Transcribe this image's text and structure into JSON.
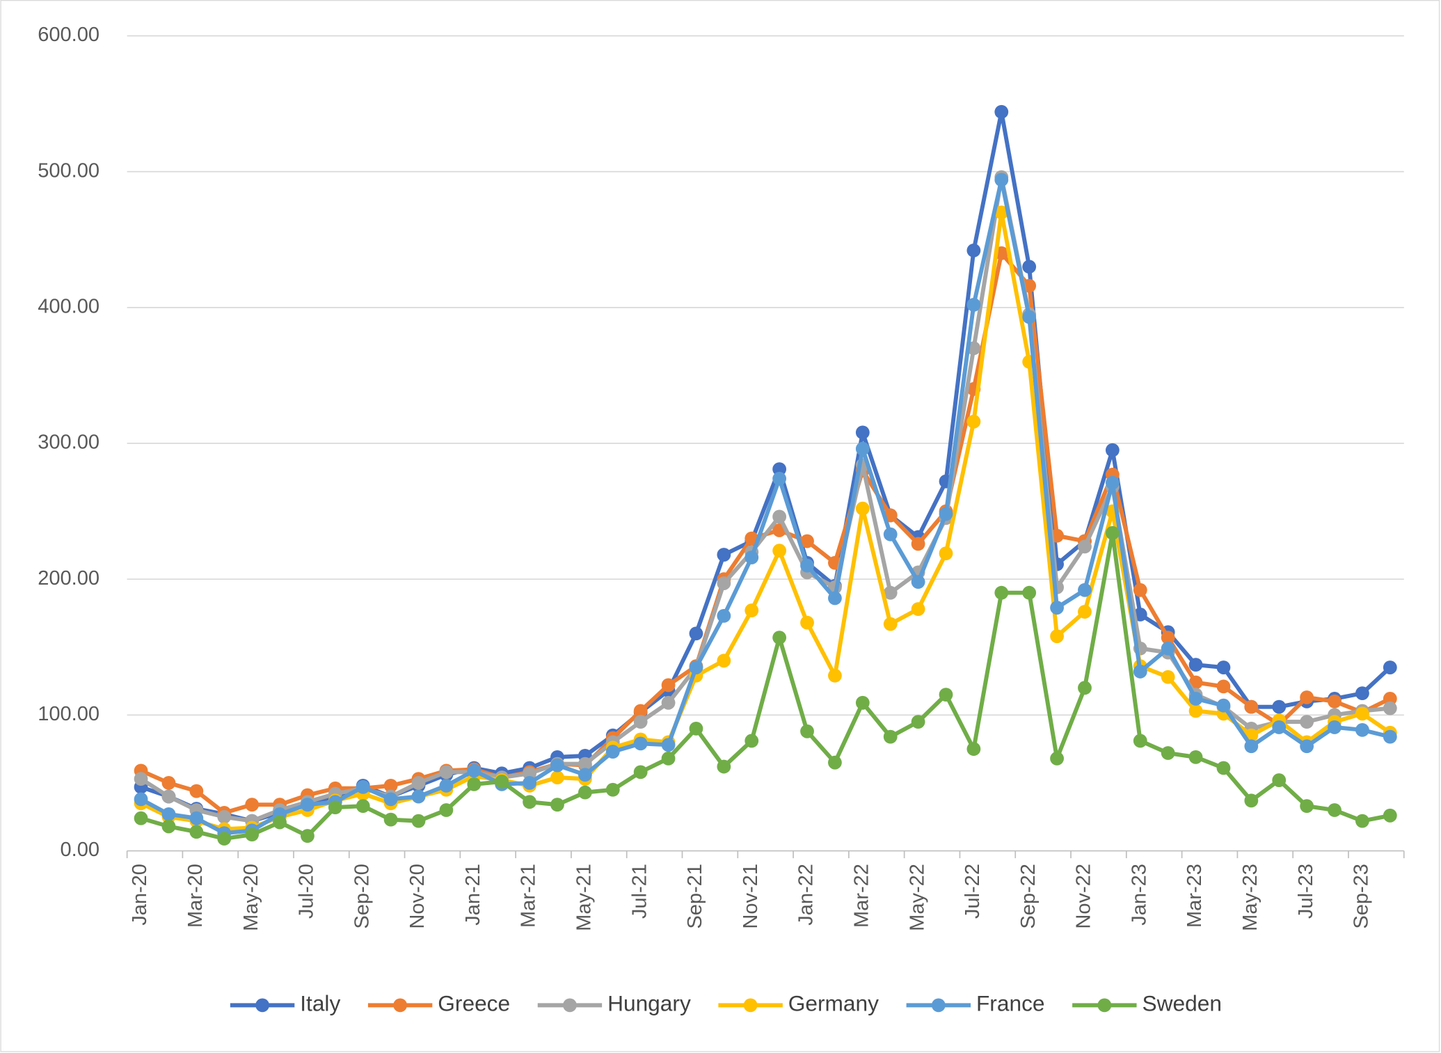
{
  "chart_data": {
    "type": "line",
    "categories": [
      "Jan-20",
      null,
      "Mar-20",
      null,
      "May-20",
      null,
      "Jul-20",
      null,
      "Sep-20",
      null,
      "Nov-20",
      null,
      "Jan-21",
      null,
      "Mar-21",
      null,
      "May-21",
      null,
      "Jul-21",
      null,
      "Sep-21",
      null,
      "Nov-21",
      null,
      "Jan-22",
      null,
      "Mar-22",
      null,
      "May-22",
      null,
      "Jul-22",
      null,
      "Sep-22",
      null,
      "Nov-22",
      null,
      "Jan-23",
      null,
      "Mar-23",
      null,
      "May-23",
      null,
      "Jul-23",
      null,
      "Sep-23",
      null
    ],
    "series": [
      {
        "name": "Italy",
        "color": "#4472c4",
        "values": [
          47,
          40,
          31,
          27,
          22,
          28,
          35,
          40,
          48,
          40,
          48,
          56,
          61,
          57,
          61,
          69,
          70,
          85,
          102,
          118,
          160,
          218,
          228,
          281,
          212,
          195,
          308,
          247,
          231,
          272,
          442,
          544,
          430,
          211,
          228,
          295,
          174,
          161,
          137,
          135,
          106,
          106,
          110,
          112,
          116,
          135
        ]
      },
      {
        "name": "Greece",
        "color": "#ed7d31",
        "values": [
          59,
          50,
          44,
          28,
          34,
          34,
          41,
          46,
          46,
          48,
          53,
          59,
          60,
          54,
          58,
          64,
          63,
          83,
          103,
          122,
          136,
          200,
          230,
          236,
          228,
          212,
          280,
          247,
          226,
          250,
          340,
          440,
          416,
          232,
          228,
          277,
          192,
          157,
          124,
          121,
          106,
          93,
          113,
          110,
          102,
          112
        ]
      },
      {
        "name": "Hungary",
        "color": "#a5a5a5",
        "values": [
          53,
          40,
          30,
          25,
          22,
          30,
          36,
          42,
          46,
          40,
          50,
          58,
          58,
          54,
          57,
          64,
          64,
          80,
          95,
          109,
          135,
          197,
          220,
          246,
          205,
          194,
          284,
          190,
          205,
          245,
          370,
          496,
          395,
          194,
          224,
          268,
          149,
          146,
          115,
          106,
          90,
          95,
          95,
          100,
          103,
          105
        ]
      },
      {
        "name": "Germany",
        "color": "#ffc000",
        "values": [
          35,
          25,
          22,
          16,
          17,
          25,
          30,
          37,
          42,
          35,
          40,
          45,
          55,
          52,
          48,
          54,
          53,
          76,
          82,
          80,
          129,
          140,
          177,
          221,
          168,
          129,
          252,
          167,
          178,
          219,
          316,
          470,
          360,
          158,
          176,
          250,
          136,
          128,
          103,
          101,
          85,
          96,
          80,
          95,
          101,
          87
        ]
      },
      {
        "name": "France",
        "color": "#5b9bd5",
        "values": [
          38,
          27,
          24,
          13,
          15,
          27,
          34,
          36,
          47,
          38,
          40,
          48,
          59,
          49,
          50,
          63,
          56,
          73,
          79,
          78,
          135,
          173,
          216,
          274,
          210,
          186,
          296,
          233,
          198,
          248,
          402,
          494,
          393,
          179,
          192,
          271,
          132,
          149,
          112,
          107,
          77,
          91,
          77,
          91,
          89,
          84
        ]
      },
      {
        "name": "Sweden",
        "color": "#70ad47",
        "values": [
          24,
          18,
          14,
          9,
          12,
          21,
          11,
          32,
          33,
          23,
          22,
          30,
          49,
          51,
          36,
          34,
          43,
          45,
          58,
          68,
          90,
          62,
          81,
          157,
          88,
          65,
          109,
          84,
          95,
          115,
          75,
          190,
          190,
          68,
          120,
          234,
          81,
          72,
          69,
          61,
          37,
          52,
          33,
          30,
          22,
          26
        ]
      }
    ],
    "ylim": [
      0,
      600
    ],
    "yticks": [
      {
        "value": 0,
        "label": "0.00"
      },
      {
        "value": 100,
        "label": "100.00"
      },
      {
        "value": 200,
        "label": "200.00"
      },
      {
        "value": 300,
        "label": "300.00"
      },
      {
        "value": 400,
        "label": "400.00"
      },
      {
        "value": 500,
        "label": "500.00"
      },
      {
        "value": 600,
        "label": "600.00"
      }
    ],
    "grid": true,
    "legend": "bottom"
  }
}
